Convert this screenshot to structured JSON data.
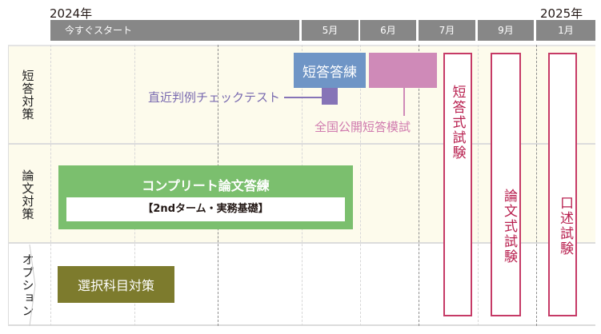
{
  "years": {
    "start": "2024年",
    "end": "2025年"
  },
  "timeline": [
    "今すぐスタート",
    "5月",
    "6月",
    "7月",
    "9月",
    "1月"
  ],
  "rows": {
    "short": "短答対策",
    "essay": "論文対策",
    "option": "オプション"
  },
  "courses": {
    "short_answer_drill": "短答答練",
    "case_check_test": "直近判例チェックテスト",
    "national_mock": "全国公開短答模試",
    "essay_title": "コンプリート論文答練",
    "essay_sub": "【2ndターム・実務基礎】",
    "elective": "選択科目対策"
  },
  "exams": [
    "短答式試験",
    "論文式試験",
    "口述試験"
  ],
  "colors": {
    "blue": "#6f95c6",
    "pink": "#cf8ab8",
    "purple": "#8674b7",
    "green": "#7bbf6e",
    "olive": "#7d7b2d",
    "exam": "#c63a66",
    "band": "#fdfbec",
    "header": "#878787"
  }
}
